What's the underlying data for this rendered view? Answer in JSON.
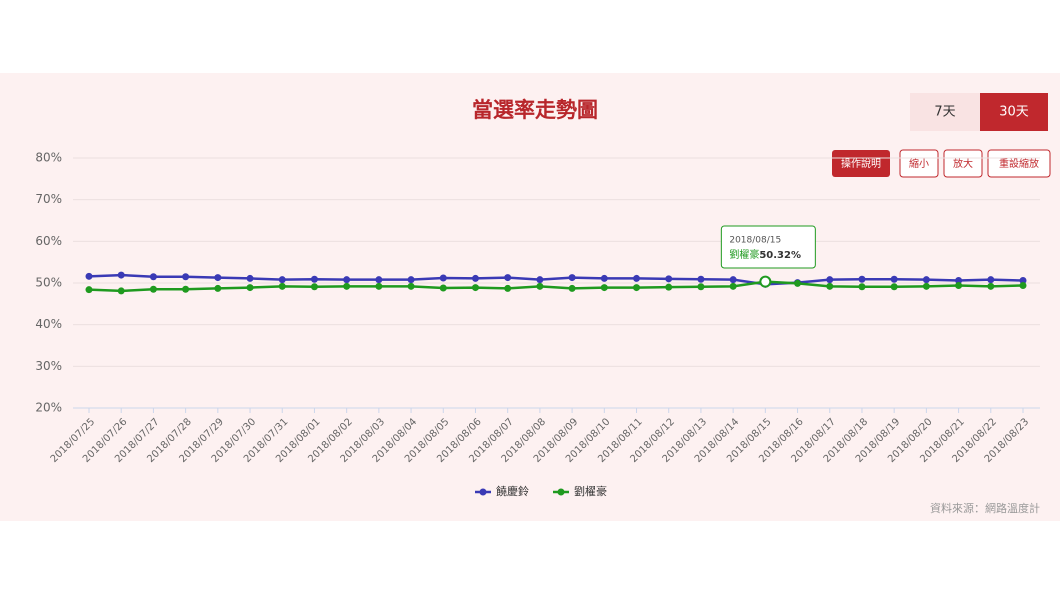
{
  "chart_data": {
    "type": "line",
    "title": "當選率走勢圖",
    "categories": [
      "2018/07/25",
      "2018/07/26",
      "2018/07/27",
      "2018/07/28",
      "2018/07/29",
      "2018/07/30",
      "2018/07/31",
      "2018/08/01",
      "2018/08/02",
      "2018/08/03",
      "2018/08/04",
      "2018/08/05",
      "2018/08/06",
      "2018/08/07",
      "2018/08/08",
      "2018/08/09",
      "2018/08/10",
      "2018/08/11",
      "2018/08/12",
      "2018/08/13",
      "2018/08/14",
      "2018/08/15",
      "2018/08/16",
      "2018/08/17",
      "2018/08/18",
      "2018/08/19",
      "2018/08/20",
      "2018/08/21",
      "2018/08/22",
      "2018/08/23"
    ],
    "series": [
      {
        "name": "饒慶鈴",
        "color": "#3a3ab5",
        "values": [
          51.6,
          51.9,
          51.5,
          51.5,
          51.3,
          51.1,
          50.8,
          50.9,
          50.8,
          50.8,
          50.8,
          51.2,
          51.1,
          51.3,
          50.8,
          51.3,
          51.1,
          51.1,
          51.0,
          50.9,
          50.8,
          49.68,
          50.1,
          50.8,
          50.9,
          50.9,
          50.8,
          50.6,
          50.8,
          50.6
        ]
      },
      {
        "name": "劉櫂豪",
        "color": "#1f9a1f",
        "values": [
          48.4,
          48.1,
          48.5,
          48.5,
          48.7,
          48.9,
          49.2,
          49.1,
          49.2,
          49.2,
          49.2,
          48.8,
          48.9,
          48.7,
          49.2,
          48.7,
          48.9,
          48.9,
          49.0,
          49.1,
          49.2,
          50.32,
          49.9,
          49.2,
          49.1,
          49.1,
          49.2,
          49.4,
          49.2,
          49.4
        ]
      }
    ],
    "ylim": [
      20,
      80
    ],
    "yticks": [
      {
        "value": 20,
        "label": "20%"
      },
      {
        "value": 30,
        "label": "30%"
      },
      {
        "value": 40,
        "label": "40%"
      },
      {
        "value": 50,
        "label": "50%"
      },
      {
        "value": 60,
        "label": "60%"
      },
      {
        "value": 70,
        "label": "70%"
      },
      {
        "value": 80,
        "label": "80%"
      }
    ],
    "grid": true,
    "legend": "bottom",
    "tooltip": {
      "series_label": "劉櫂豪:",
      "value_label": "50.32%"
    }
  },
  "range_buttons": [
    "7天",
    "30天"
  ],
  "zoom_buttons": [
    "操作說明",
    "縮小",
    "放大",
    "重設縮放"
  ],
  "source": "資料來源：網路溫度計"
}
